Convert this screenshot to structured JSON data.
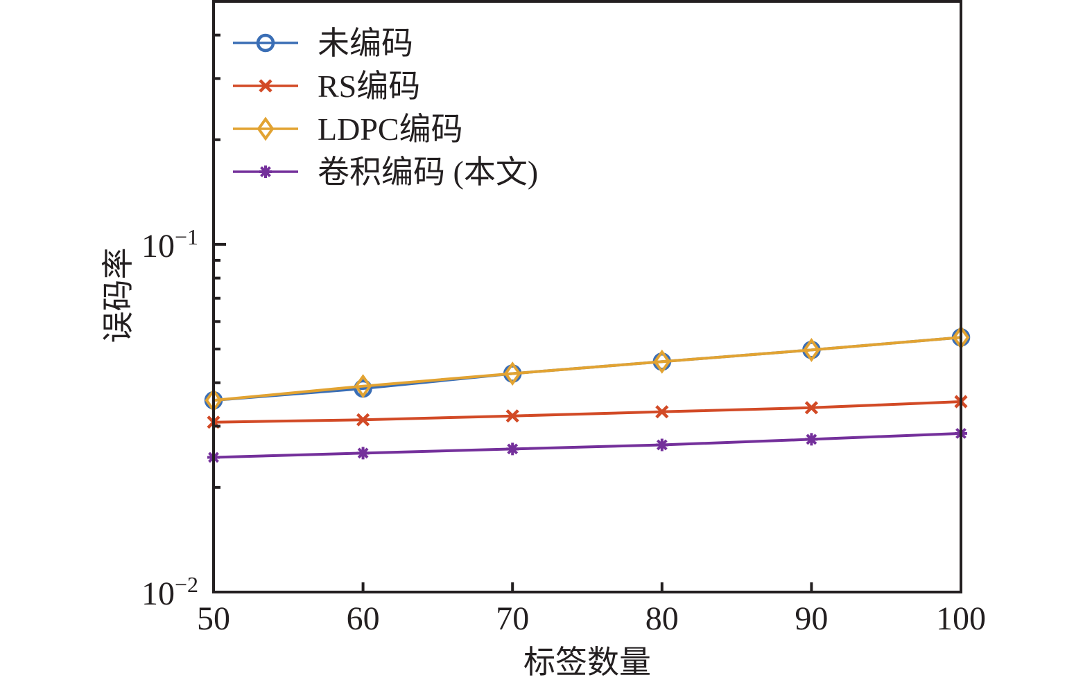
{
  "chart_data": {
    "type": "line",
    "title": "",
    "xlabel": "标签数量",
    "ylabel": "误码率",
    "yscale": "log",
    "x": [
      50,
      60,
      70,
      80,
      90,
      100
    ],
    "xlim": [
      50,
      100
    ],
    "ylim": [
      0.01,
      0.5
    ],
    "xticks": [
      50,
      60,
      70,
      80,
      90,
      100
    ],
    "xtick_labels": [
      "50",
      "60",
      "70",
      "80",
      "90",
      "100"
    ],
    "yticks": [
      {
        "value": 0.1,
        "base": "10",
        "exp": "−1"
      },
      {
        "value": 0.01,
        "base": "10",
        "exp": "−2"
      }
    ],
    "yminor_ticks": [
      0.02,
      0.03,
      0.04,
      0.05,
      0.06,
      0.07,
      0.08,
      0.09,
      0.2,
      0.3,
      0.4
    ],
    "grid": false,
    "legend_position": "top-left",
    "series": [
      {
        "name": "未编码",
        "color": "#3a6eb5",
        "marker": "circle",
        "values": [
          0.0356,
          0.0385,
          0.0425,
          0.046,
          0.0497,
          0.054
        ]
      },
      {
        "name": "RS编码",
        "color": "#d24a26",
        "marker": "x",
        "values": [
          0.0308,
          0.0313,
          0.0321,
          0.033,
          0.0339,
          0.0353
        ]
      },
      {
        "name": "LDPC编码",
        "color": "#e2a332",
        "marker": "diamond",
        "values": [
          0.0356,
          0.0391,
          0.0425,
          0.046,
          0.0497,
          0.054
        ]
      },
      {
        "name": "卷积编码 (本文)",
        "color": "#74309b",
        "marker": "asterisk",
        "values": [
          0.0244,
          0.0251,
          0.0258,
          0.0265,
          0.0275,
          0.0286
        ]
      }
    ]
  }
}
